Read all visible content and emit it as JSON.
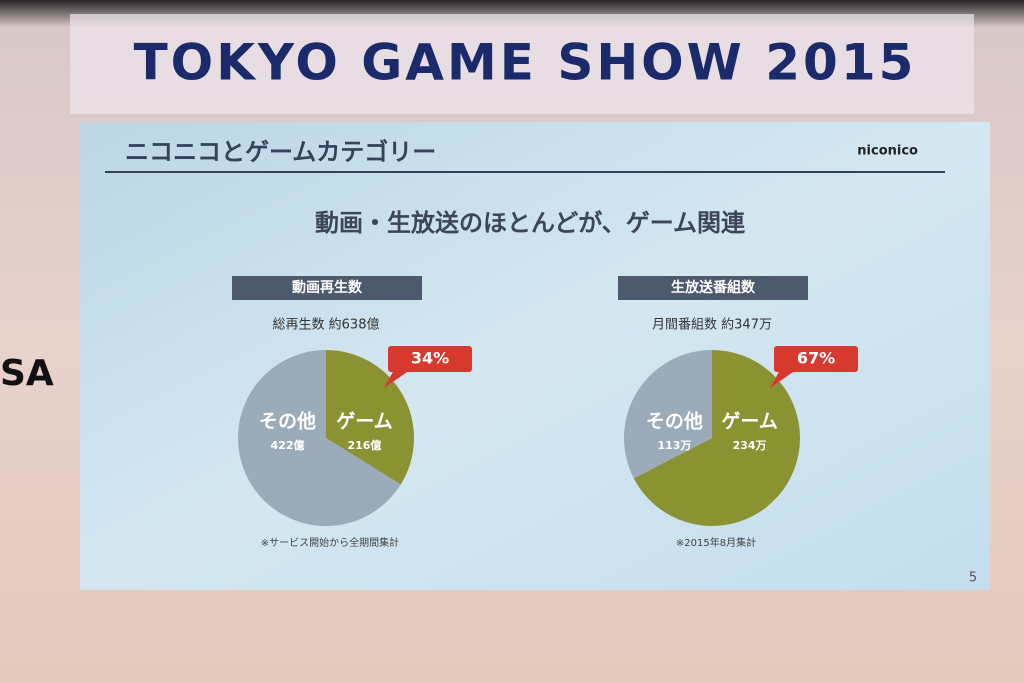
{
  "banner": "TOKYO GAME SHOW 2015",
  "side_left": "SA",
  "slide": {
    "title": "ニコニコとゲームカテゴリー",
    "logo": "niconico",
    "headline": "動画・生放送のほとんどが、ゲーム関連",
    "page": "5"
  },
  "chart_data": [
    {
      "type": "pie",
      "title": "動画再生数",
      "subtitle": "総再生数 約638億",
      "note": "※サービス開始から全期間集計",
      "annotation": "34%",
      "categories": [
        "ゲーム",
        "その他"
      ],
      "values": [
        216,
        422
      ],
      "value_labels": [
        "216億",
        "422億"
      ],
      "colors": [
        "#8a9232",
        "#9babb9"
      ]
    },
    {
      "type": "pie",
      "title": "生放送番組数",
      "subtitle": "月間番組数 約347万",
      "note": "※2015年8月集計",
      "annotation": "67%",
      "categories": [
        "ゲーム",
        "その他"
      ],
      "values": [
        234,
        113
      ],
      "value_labels": [
        "234万",
        "113万"
      ],
      "colors": [
        "#8a9232",
        "#9babb9"
      ]
    }
  ]
}
